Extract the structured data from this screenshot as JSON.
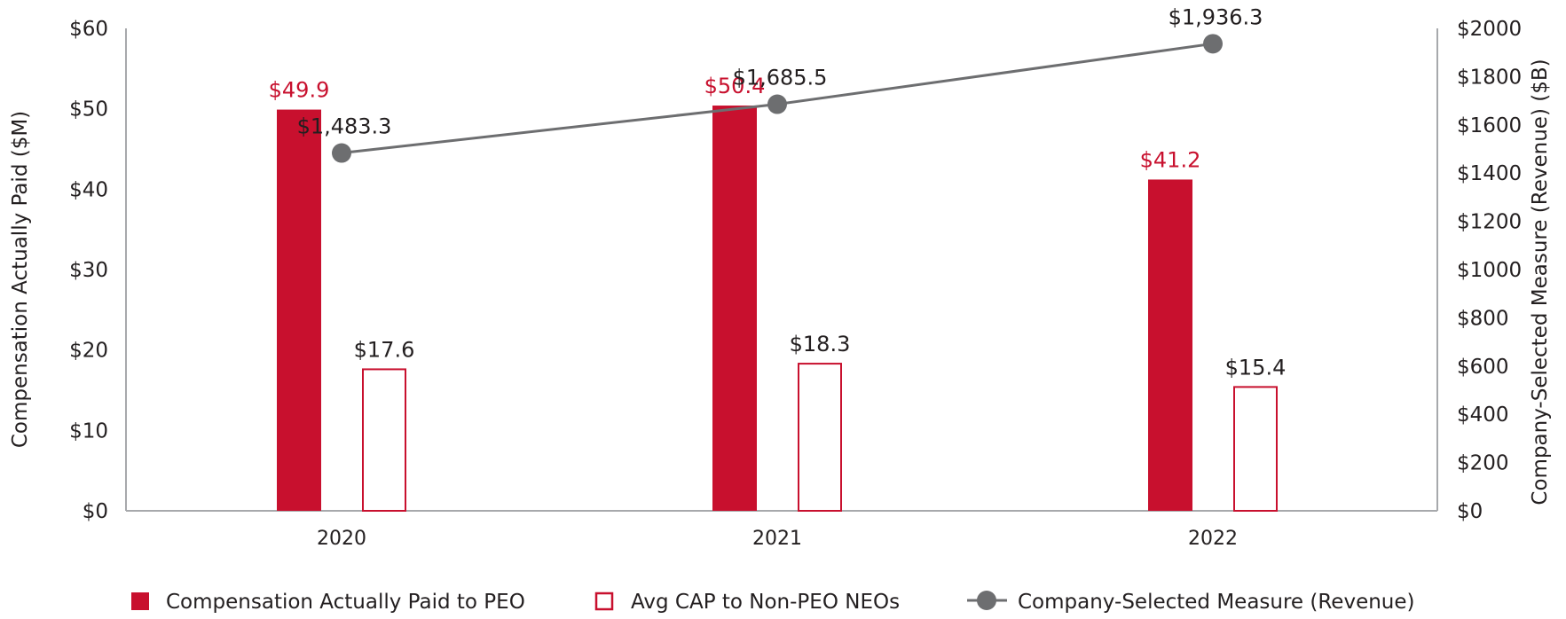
{
  "chart_data": {
    "type": "bar",
    "categories": [
      "2020",
      "2021",
      "2022"
    ],
    "series": [
      {
        "name": "Compensation Actually Paid to PEO",
        "axis": "left",
        "style": "filled-bar",
        "values": [
          49.9,
          50.4,
          41.2
        ],
        "labels": [
          "$49.9",
          "$50.4",
          "$41.2"
        ]
      },
      {
        "name": "Avg CAP to Non-PEO NEOs",
        "axis": "left",
        "style": "outlined-bar",
        "values": [
          17.6,
          18.3,
          15.4
        ],
        "labels": [
          "$17.6",
          "$18.3",
          "$15.4"
        ]
      },
      {
        "name": "Company-Selected Measure (Revenue)",
        "axis": "right",
        "style": "line-markers",
        "values": [
          1483.3,
          1685.5,
          1936.3
        ],
        "labels": [
          "$1,483.3",
          "$1,685.5",
          "$1,936.3"
        ]
      }
    ],
    "left_axis": {
      "label": "Compensation Actually Paid ($M)",
      "range": [
        0,
        60
      ],
      "ticks": [
        0,
        10,
        20,
        30,
        40,
        50,
        60
      ],
      "tick_labels": [
        "$0",
        "$10",
        "$20",
        "$30",
        "$40",
        "$50",
        "$60"
      ]
    },
    "right_axis": {
      "label": "Company-Selected Measure (Revenue) ($B)",
      "range": [
        0,
        2000
      ],
      "ticks": [
        0,
        200,
        400,
        600,
        800,
        1000,
        1200,
        1400,
        1600,
        1800,
        2000
      ],
      "tick_labels": [
        "$0",
        "$200",
        "$400",
        "$600",
        "$800",
        "$1000",
        "$1200",
        "$1400",
        "$1600",
        "$1800",
        "$2000"
      ]
    },
    "legend_position": "bottom",
    "grid": false,
    "colors": {
      "peo": "#c8102e",
      "neo_outline": "#c8102e",
      "revenue": "#6d6e70",
      "axis": "#a7a9ac",
      "text": "#231f20"
    }
  }
}
